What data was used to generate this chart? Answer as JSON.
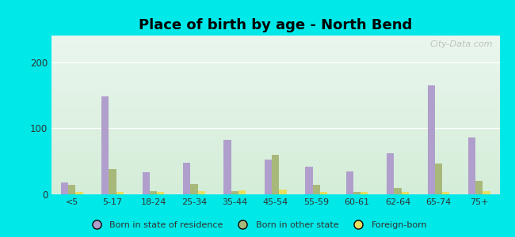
{
  "title": "Place of birth by age - North Bend",
  "categories": [
    "<5",
    "5-17",
    "18-24",
    "25-34",
    "35-44",
    "45-54",
    "55-59",
    "60-61",
    "62-64",
    "65-74",
    "75+"
  ],
  "born_in_state": [
    18,
    148,
    33,
    48,
    82,
    52,
    42,
    35,
    62,
    165,
    86
  ],
  "born_other_state": [
    14,
    38,
    5,
    16,
    5,
    60,
    14,
    4,
    10,
    46,
    20
  ],
  "foreign_born": [
    4,
    3,
    3,
    5,
    6,
    7,
    3,
    3,
    4,
    3,
    5
  ],
  "color_state": "#b09fcc",
  "color_other": "#a8b87a",
  "color_foreign": "#e8de60",
  "bg_top": "#eaf6ee",
  "bg_bottom": "#d4edd8",
  "ylim": [
    0,
    240
  ],
  "yticks": [
    0,
    100,
    200
  ],
  "bar_width": 0.18,
  "watermark": "City-Data.com",
  "legend_labels": [
    "Born in state of residence",
    "Born in other state",
    "Foreign-born"
  ],
  "bg_color": "#00e8e8",
  "title_fontsize": 13,
  "tick_fontsize": 8
}
